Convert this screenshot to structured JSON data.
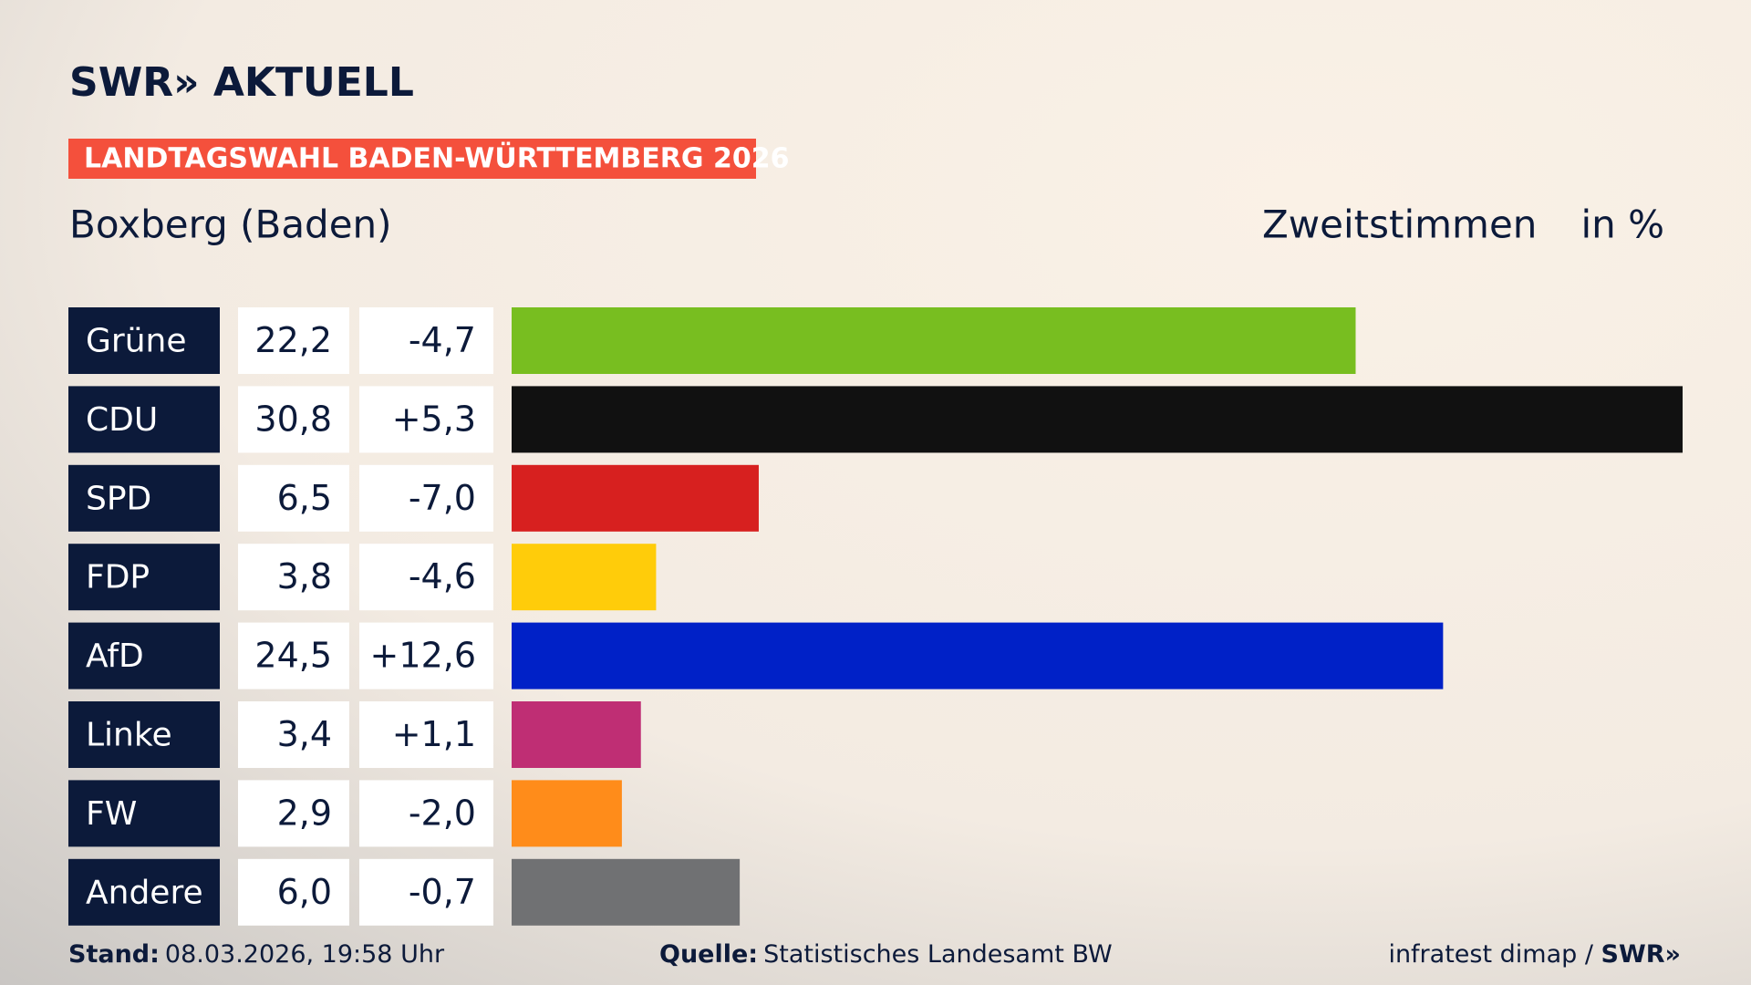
{
  "chart_data": {
    "type": "bar",
    "brand": "SWR» AKTUELL",
    "title": "LANDTAGSWAHL BADEN-WÜRTTEMBERG 2026",
    "subtitle": "Boxberg (Baden)",
    "measure": "Zweitstimmen",
    "unit": "in %",
    "categories": [
      "Grüne",
      "CDU",
      "SPD",
      "FDP",
      "AfD",
      "Linke",
      "FW",
      "Andere"
    ],
    "values": [
      22.2,
      30.8,
      6.5,
      3.8,
      24.5,
      3.4,
      2.9,
      6.0
    ],
    "value_labels": [
      "22,2",
      "30,8",
      "6,5",
      "3,8",
      "24,5",
      "3,4",
      "2,9",
      "6,0"
    ],
    "changes": [
      -4.7,
      5.3,
      -7.0,
      -4.6,
      12.6,
      1.1,
      -2.0,
      -0.7
    ],
    "change_labels": [
      "-4,7",
      "+5,3",
      "-7,0",
      "-4,6",
      "+12,6",
      "+1,1",
      "-2,0",
      "-0,7"
    ],
    "colors": [
      "#78be20",
      "#111111",
      "#d7201f",
      "#ffcc0a",
      "#0021c7",
      "#bf2e74",
      "#ff8c1a",
      "#707173"
    ],
    "stand_label": "Stand:",
    "stand": "08.03.2026, 19:58 Uhr",
    "source_label": "Quelle:",
    "source": "Statistisches Landesamt BW",
    "credit": "infratest dimap / ",
    "credit_brand": "SWR»"
  }
}
